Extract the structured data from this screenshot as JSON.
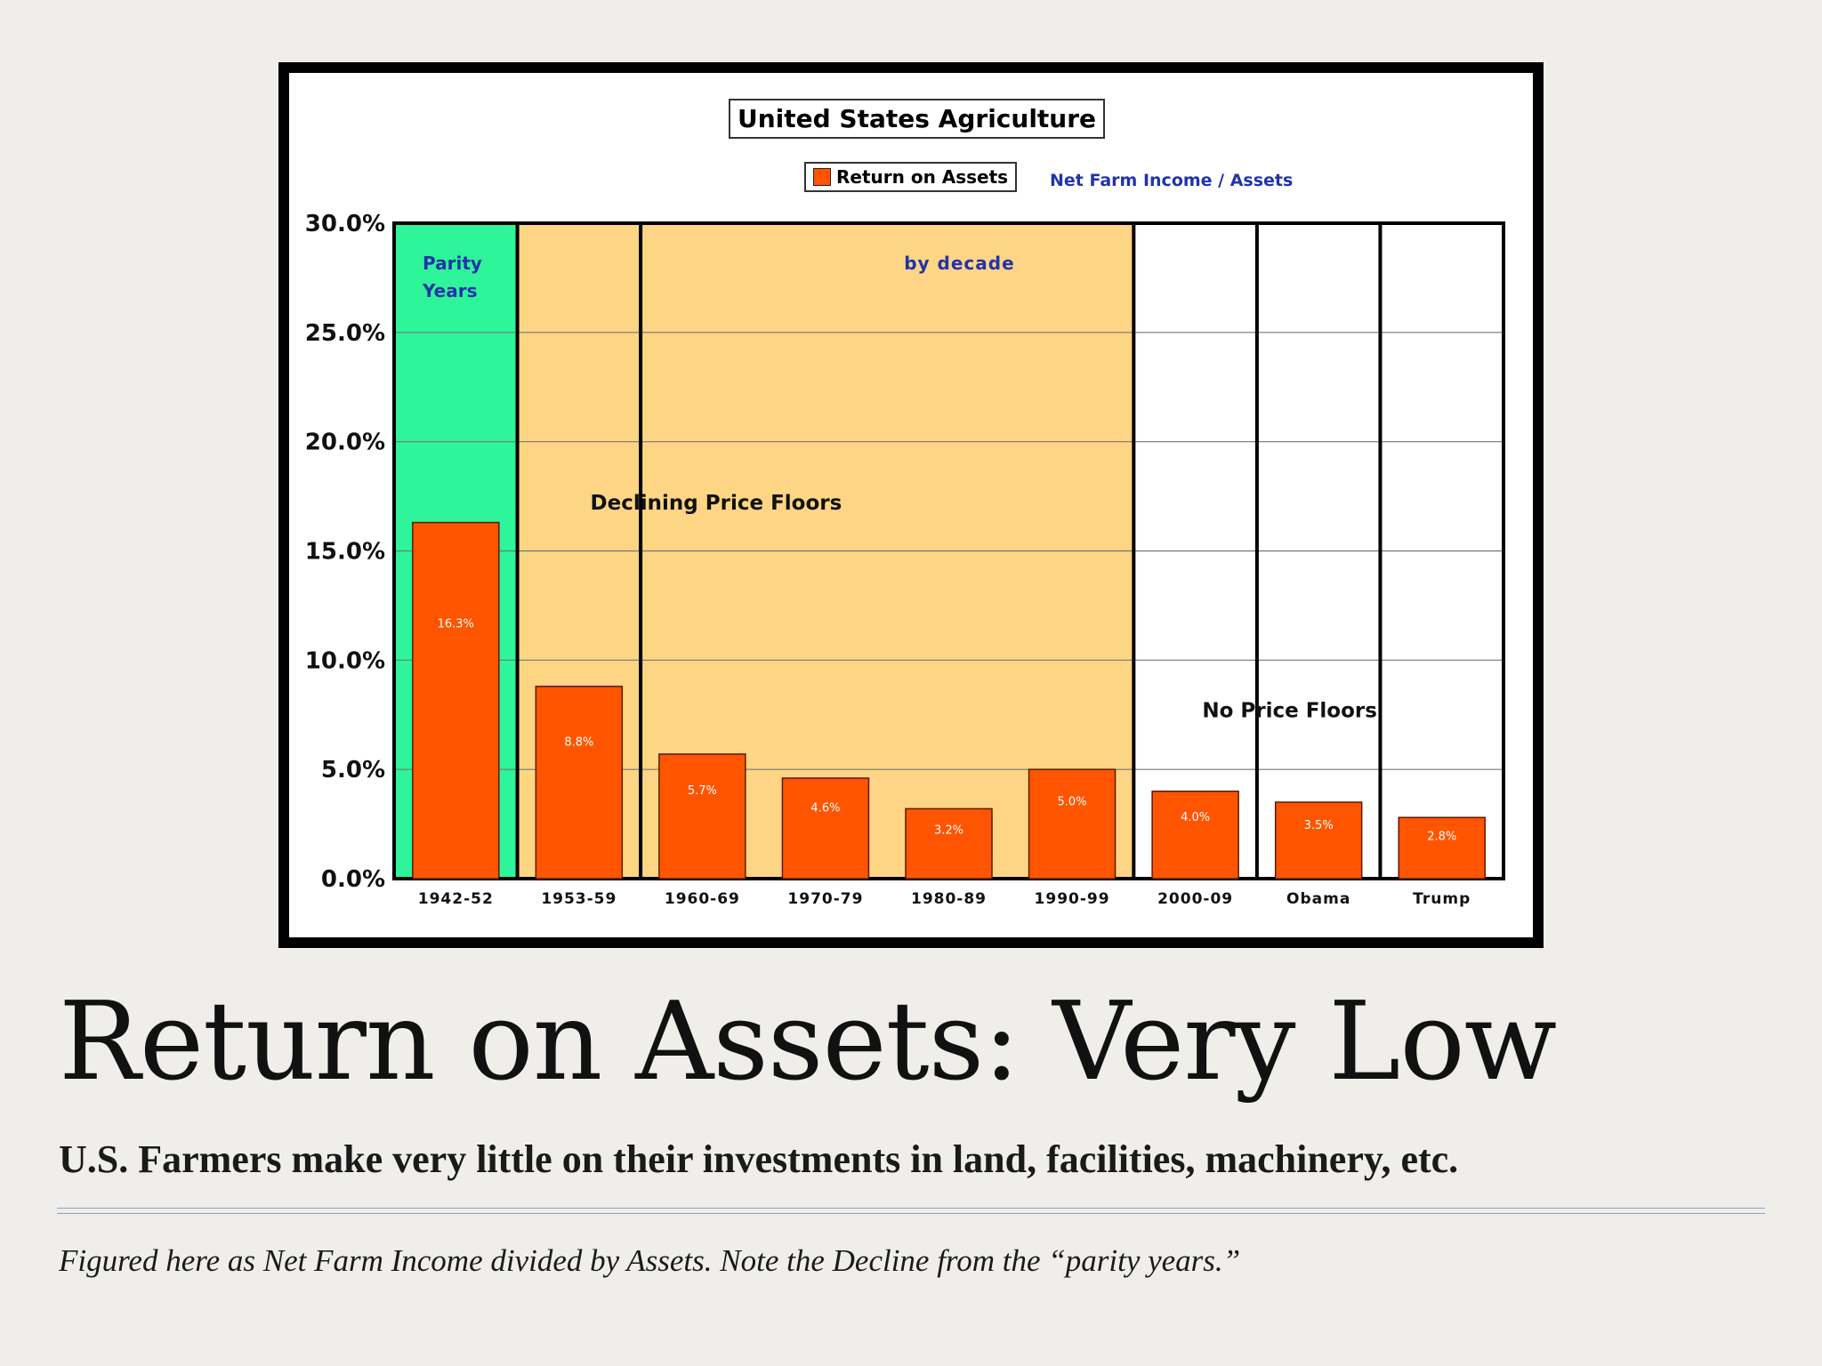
{
  "slide": {
    "title": "Return on Assets: Very Low",
    "subtitle": "U.S. Farmers make very little on their investments in land, facilities, machinery, etc.",
    "footnote": "Figured here as Net Farm Income divided by Assets.  Note the Decline from the “parity years.”"
  },
  "chart_data": {
    "type": "bar",
    "title": "United States Agriculture",
    "legend": [
      "Return on Assets"
    ],
    "legend_note": "Net Farm Income / Assets",
    "categories": [
      "1942-52",
      "1953-59",
      "1960-69",
      "1970-79",
      "1980-89",
      "1990-99",
      "2000-09",
      "Obama",
      "Trump"
    ],
    "series": [
      {
        "name": "Return on Assets",
        "values": [
          16.3,
          8.8,
          5.7,
          4.6,
          3.2,
          5.0,
          4.0,
          3.5,
          2.8
        ]
      }
    ],
    "data_labels": [
      "16.3%",
      "8.8%",
      "5.7%",
      "4.6%",
      "3.2%",
      "5.0%",
      "4.0%",
      "3.5%",
      "2.8%"
    ],
    "y_ticks": [
      "0.0%",
      "5.0%",
      "10.0%",
      "15.0%",
      "20.0%",
      "25.0%",
      "30.0%"
    ],
    "ylim": [
      0,
      30
    ],
    "grid": true,
    "regions": [
      {
        "label": "Parity Years",
        "lines": [
          "Parity",
          "Years"
        ],
        "from": 0,
        "to": 0,
        "color": "#2ef59a"
      },
      {
        "label": "Declining Price Floors",
        "from": 1,
        "to": 5,
        "color": "#fdd584"
      },
      {
        "label": "No Price Floors",
        "from": 6,
        "to": 8,
        "color": "#ffffff"
      }
    ],
    "annotations": [
      "by decade"
    ],
    "colors": {
      "bar": "#ff5500",
      "bar_label": "#ffffff",
      "note": "#2233aa"
    }
  }
}
